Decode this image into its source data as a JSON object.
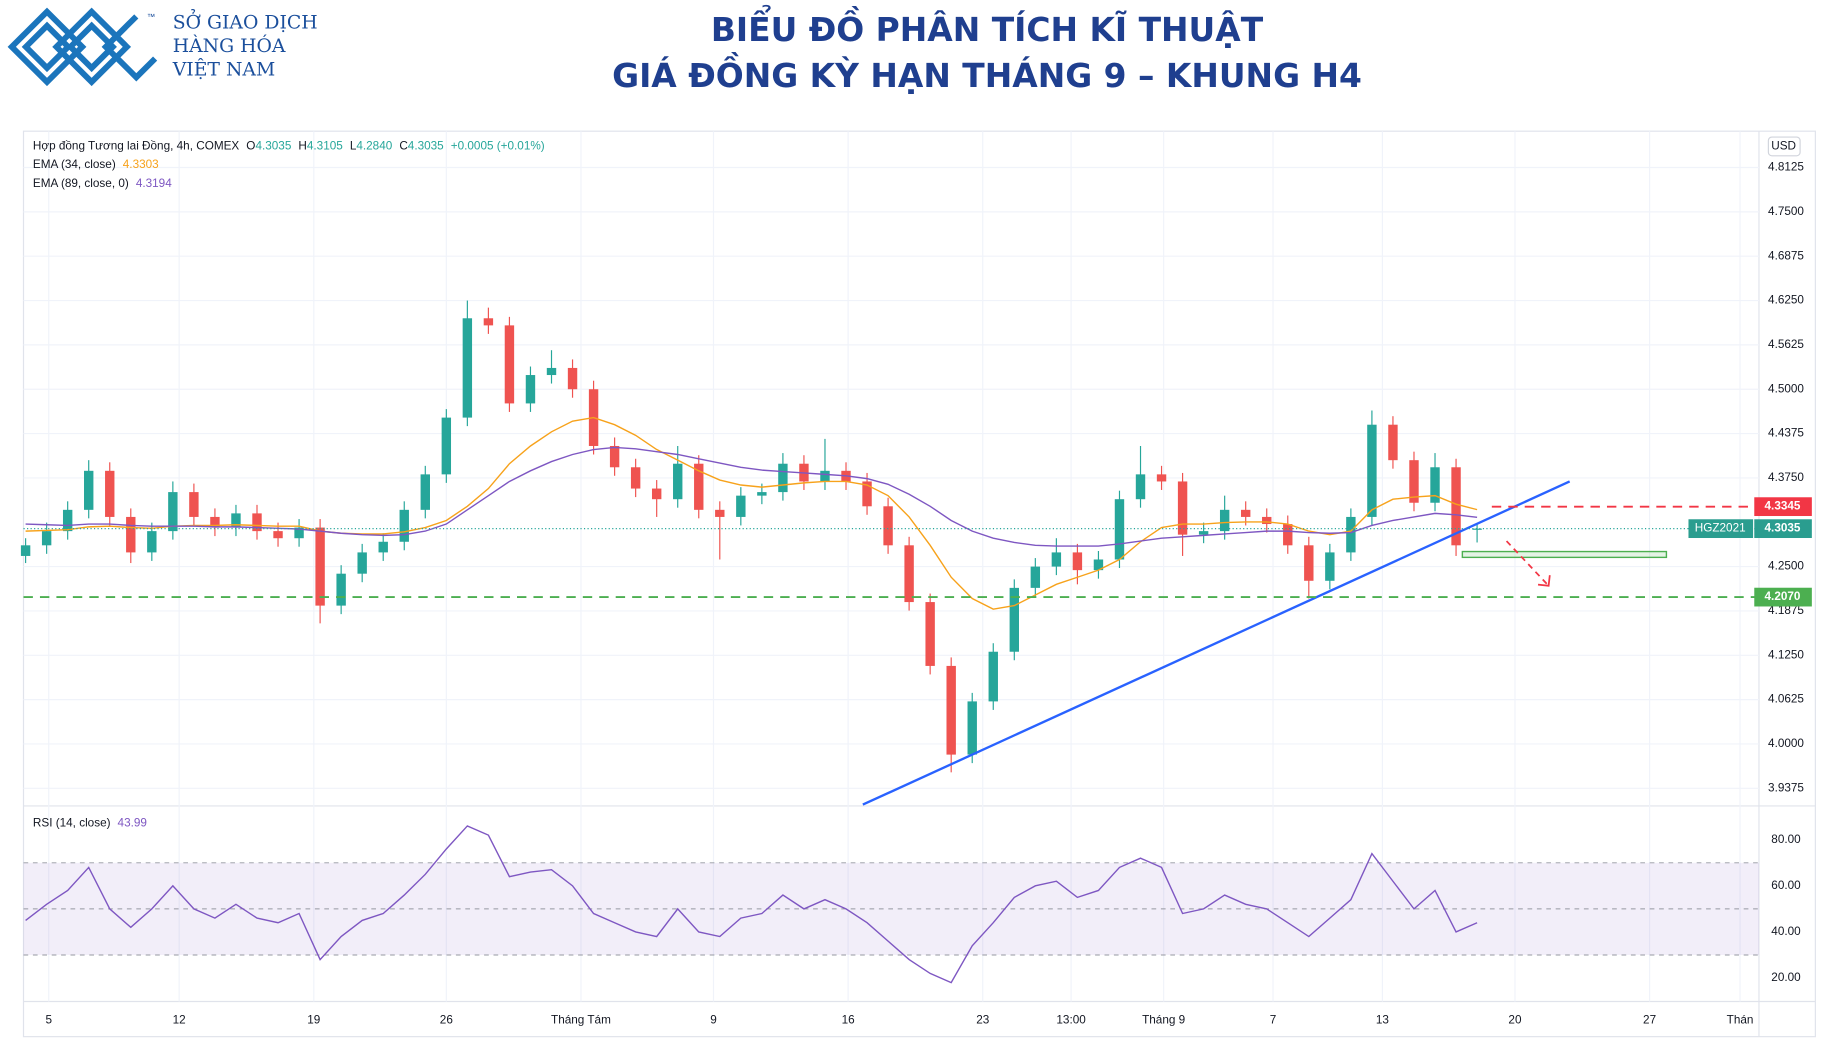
{
  "header": {
    "logo_lines": [
      "SỞ GIAO DỊCH",
      "HÀNG HÓA",
      "VIỆT NAM"
    ],
    "trademark": "™",
    "title": [
      "BIỂU ĐỒ PHÂN TÍCH KĨ THUẬT",
      "GIÁ ĐỒNG KỲ HẠN THÁNG 9 – KHUNG H4"
    ]
  },
  "chart_data": [
    {
      "type": "candlestick",
      "instrument": "Hợp đồng Tương lai Đồng, 4h, COMEX",
      "ohlc_legend": [
        {
          "prefix": "O",
          "text": "4.3035"
        },
        {
          "prefix": "H",
          "text": "4.3105"
        },
        {
          "prefix": "L",
          "text": "4.2840"
        },
        {
          "prefix": "C",
          "text": "4.3035"
        }
      ],
      "change": "+0.0005 (+0.01%)",
      "currency": "USD",
      "symbol": "HGZ2021",
      "up_color": "#26a69a",
      "down_color": "#ef5350",
      "open": [
        4.265,
        4.28,
        4.3,
        4.33,
        4.385,
        4.32,
        4.27,
        4.3,
        4.355,
        4.32,
        4.305,
        4.325,
        4.3,
        4.29,
        4.305,
        4.195,
        4.24,
        4.27,
        4.285,
        4.33,
        4.38,
        4.46,
        4.6,
        4.59,
        4.48,
        4.52,
        4.53,
        4.5,
        4.42,
        4.39,
        4.36,
        4.345,
        4.395,
        4.33,
        4.32,
        4.35,
        4.355,
        4.395,
        4.37,
        4.385,
        4.37,
        4.335,
        4.28,
        4.2,
        4.11,
        3.985,
        4.06,
        4.13,
        4.22,
        4.25,
        4.27,
        4.245,
        4.26,
        4.345,
        4.38,
        4.37,
        4.295,
        4.3,
        4.33,
        4.32,
        4.31,
        4.28,
        4.23,
        4.27,
        4.32,
        4.45,
        4.4,
        4.34,
        4.39,
        4.3035
      ],
      "high": [
        4.29,
        4.312,
        4.342,
        4.4,
        4.397,
        4.332,
        4.312,
        4.37,
        4.367,
        4.332,
        4.337,
        4.337,
        4.312,
        4.317,
        4.317,
        4.252,
        4.282,
        4.297,
        4.342,
        4.392,
        4.472,
        4.625,
        4.615,
        4.602,
        4.532,
        4.555,
        4.542,
        4.512,
        4.432,
        4.402,
        4.372,
        4.42,
        4.407,
        4.342,
        4.362,
        4.367,
        4.41,
        4.407,
        4.43,
        4.397,
        4.382,
        4.347,
        4.292,
        4.212,
        4.122,
        4.072,
        4.142,
        4.232,
        4.262,
        4.29,
        4.282,
        4.272,
        4.357,
        4.42,
        4.392,
        4.382,
        4.312,
        4.35,
        4.342,
        4.332,
        4.322,
        4.292,
        4.282,
        4.332,
        4.47,
        4.462,
        4.412,
        4.41,
        4.402,
        4.3105
      ],
      "low": [
        4.255,
        4.268,
        4.288,
        4.318,
        4.308,
        4.255,
        4.258,
        4.288,
        4.308,
        4.293,
        4.293,
        4.288,
        4.278,
        4.278,
        4.17,
        4.183,
        4.228,
        4.258,
        4.273,
        4.318,
        4.368,
        4.448,
        4.578,
        4.468,
        4.468,
        4.508,
        4.488,
        4.408,
        4.378,
        4.348,
        4.32,
        4.333,
        4.318,
        4.26,
        4.308,
        4.338,
        4.343,
        4.358,
        4.358,
        4.358,
        4.323,
        4.268,
        4.188,
        4.098,
        3.96,
        3.973,
        4.048,
        4.118,
        4.208,
        4.238,
        4.225,
        4.233,
        4.248,
        4.333,
        4.358,
        4.265,
        4.283,
        4.288,
        4.308,
        4.298,
        4.268,
        4.205,
        4.218,
        4.258,
        4.308,
        4.388,
        4.328,
        4.328,
        4.265,
        4.284
      ],
      "close": [
        4.28,
        4.3,
        4.33,
        4.385,
        4.32,
        4.27,
        4.3,
        4.355,
        4.32,
        4.305,
        4.325,
        4.3,
        4.29,
        4.305,
        4.195,
        4.24,
        4.27,
        4.285,
        4.33,
        4.38,
        4.46,
        4.6,
        4.59,
        4.48,
        4.52,
        4.53,
        4.5,
        4.42,
        4.39,
        4.36,
        4.345,
        4.395,
        4.33,
        4.32,
        4.35,
        4.355,
        4.395,
        4.37,
        4.385,
        4.37,
        4.335,
        4.28,
        4.2,
        4.11,
        3.985,
        4.06,
        4.13,
        4.22,
        4.25,
        4.27,
        4.245,
        4.26,
        4.345,
        4.38,
        4.37,
        4.295,
        4.3,
        4.33,
        4.32,
        4.31,
        4.28,
        4.23,
        4.27,
        4.32,
        4.45,
        4.4,
        4.34,
        4.39,
        4.28,
        4.3035
      ],
      "series": [
        {
          "name": "EMA (34, close)",
          "color": "#f7a21b",
          "values": [
            4.3,
            4.301,
            4.302,
            4.306,
            4.307,
            4.305,
            4.304,
            4.307,
            4.308,
            4.308,
            4.309,
            4.308,
            4.307,
            4.307,
            4.3,
            4.297,
            4.296,
            4.296,
            4.299,
            4.305,
            4.315,
            4.335,
            4.36,
            4.395,
            4.42,
            4.44,
            4.455,
            4.46,
            4.45,
            4.435,
            4.415,
            4.4,
            4.385,
            4.372,
            4.365,
            4.362,
            4.365,
            4.368,
            4.37,
            4.37,
            4.365,
            4.35,
            4.32,
            4.28,
            4.235,
            4.205,
            4.19,
            4.195,
            4.21,
            4.225,
            4.235,
            4.245,
            4.26,
            4.285,
            4.305,
            4.31,
            4.31,
            4.312,
            4.313,
            4.313,
            4.31,
            4.3,
            4.295,
            4.3,
            4.33,
            4.345,
            4.348,
            4.35,
            4.338,
            4.3303
          ]
        },
        {
          "name": "EMA (89, close, 0)",
          "color": "#7e57c2",
          "values": [
            4.31,
            4.309,
            4.308,
            4.31,
            4.31,
            4.308,
            4.307,
            4.307,
            4.307,
            4.306,
            4.306,
            4.305,
            4.304,
            4.303,
            4.3,
            4.297,
            4.295,
            4.294,
            4.295,
            4.3,
            4.31,
            4.33,
            4.35,
            4.37,
            4.385,
            4.398,
            4.408,
            4.415,
            4.418,
            4.416,
            4.412,
            4.408,
            4.402,
            4.396,
            4.39,
            4.386,
            4.384,
            4.382,
            4.38,
            4.378,
            4.374,
            4.366,
            4.352,
            4.335,
            4.315,
            4.3,
            4.29,
            4.284,
            4.28,
            4.279,
            4.279,
            4.279,
            4.282,
            4.286,
            4.29,
            4.292,
            4.294,
            4.296,
            4.298,
            4.3,
            4.3,
            4.298,
            4.297,
            4.298,
            4.308,
            4.315,
            4.32,
            4.325,
            4.323,
            4.3194
          ]
        }
      ],
      "xlim": [
        -0.1,
        82.4
      ],
      "ylim": [
        3.9127,
        4.8637
      ],
      "yticks": [
        4.8125,
        {
          "value": 4.75,
          "label": "4.7500"
        },
        4.6875,
        {
          "value": 4.625,
          "label": "4.6250"
        },
        4.5625,
        {
          "value": 4.5,
          "label": "4.5000"
        },
        4.4375,
        {
          "value": 4.375,
          "label": "4.3750"
        },
        {
          "value": 4.25,
          "label": "4.2500"
        },
        4.1875,
        {
          "value": 4.125,
          "label": "4.1250"
        },
        4.0625,
        {
          "value": 4.0,
          "label": "4.0000"
        },
        3.9375
      ],
      "last_price": 4.3035,
      "levels": [
        {
          "value": 4.3345,
          "color": "#f23645",
          "x_start": 69.7
        },
        {
          "value": 4.207,
          "label": "4.2070",
          "color": "#4caf50"
        }
      ],
      "trendline": {
        "x": [
          39.8,
          73.4
        ],
        "y": [
          3.9145,
          4.37
        ],
        "color": "#2962ff"
      },
      "support_box": {
        "x": [
          68.3,
          78.0
        ],
        "y": [
          4.263,
          4.2712
        ],
        "color": "#4caf50"
      },
      "arrow": {
        "x": [
          70.4,
          72.4
        ],
        "y": [
          4.286,
          4.223
        ],
        "color": "#f23645"
      }
    },
    {
      "type": "line",
      "series": [
        {
          "name": "RSI (14, close)",
          "color": "#7e57c2",
          "values": [
            45,
            52,
            58,
            68,
            50,
            42,
            50,
            60,
            50,
            46,
            52,
            46,
            44,
            48,
            28,
            38,
            45,
            48,
            56,
            65,
            76,
            86,
            82,
            64,
            66,
            67,
            60,
            48,
            44,
            40,
            38,
            50,
            40,
            38,
            46,
            48,
            56,
            50,
            54,
            50,
            44,
            36,
            28,
            22,
            18,
            34,
            44,
            55,
            60,
            62,
            55,
            58,
            68,
            72,
            68,
            48,
            50,
            56,
            52,
            50,
            44,
            38,
            46,
            54,
            74,
            62,
            50,
            58,
            40,
            43.99
          ]
        }
      ],
      "band": [
        30,
        70
      ],
      "midline": 50,
      "xlim": [
        -0.1,
        82.4
      ],
      "xticks": [
        {
          "value": 1.1,
          "label": "5"
        },
        {
          "value": 7.3,
          "label": "12"
        },
        {
          "value": 13.7,
          "label": "19"
        },
        {
          "value": 20.0,
          "label": "26"
        },
        {
          "value": 26.4,
          "label": "Tháng Tám"
        },
        {
          "value": 32.7,
          "label": "9"
        },
        {
          "value": 39.1,
          "label": "16"
        },
        {
          "value": 45.5,
          "label": "23"
        },
        {
          "value": 49.7,
          "label": "13:00"
        },
        {
          "value": 54.1,
          "label": "Tháng 9"
        },
        {
          "value": 59.3,
          "label": "7"
        },
        {
          "value": 64.5,
          "label": "13"
        },
        {
          "value": 70.8,
          "label": "20"
        },
        {
          "value": 77.2,
          "label": "27"
        },
        {
          "value": 81.5,
          "label": "Thán"
        }
      ],
      "ylim": [
        9.8,
        94.7
      ],
      "yticks": [
        {
          "value": 20,
          "label": "20.00"
        },
        {
          "value": 40,
          "label": "40.00"
        },
        {
          "value": 60,
          "label": "60.00"
        },
        {
          "value": 80,
          "label": "80.00"
        }
      ]
    }
  ]
}
